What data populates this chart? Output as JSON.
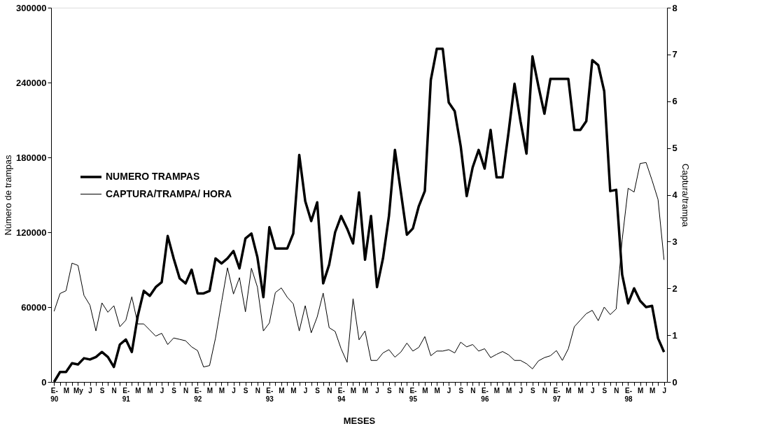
{
  "chart_data": {
    "type": "line",
    "xlabel": "MESES",
    "ylabel": "Número de trampas",
    "y2label": "Captura/trampa",
    "categories": [
      "E-\n90",
      null,
      "M",
      null,
      "My",
      null,
      "J",
      null,
      "S",
      null,
      "N",
      null,
      "E-\n91",
      null,
      "M",
      null,
      "M",
      null,
      "J",
      null,
      "S",
      null,
      "N",
      null,
      "E-\n92",
      null,
      "M",
      null,
      "M",
      null,
      "J",
      null,
      "S",
      null,
      "N",
      null,
      "E-\n93",
      null,
      "M",
      null,
      "M",
      null,
      "J",
      null,
      "S",
      null,
      "N",
      null,
      "E-\n94",
      null,
      "M",
      null,
      "M",
      null,
      "J",
      null,
      "S",
      null,
      "N",
      null,
      "E-\n95",
      null,
      "M",
      null,
      "M",
      null,
      "J",
      null,
      "S",
      null,
      "N",
      null,
      "E-\n96",
      null,
      "M",
      null,
      "M",
      null,
      "J",
      null,
      "S",
      null,
      "N",
      null,
      "E-\n97",
      null,
      "M",
      null,
      "M",
      null,
      "J",
      null,
      "S",
      null,
      "N",
      null,
      "E-\n98",
      null,
      "M",
      null,
      "M",
      null,
      "J"
    ],
    "series": [
      {
        "name": "NUMERO TRAMPAS",
        "color": "#000000",
        "values": [
          0,
          8000,
          8000,
          15000,
          14000,
          19000,
          18000,
          20000,
          24000,
          20000,
          12000,
          30000,
          34000,
          24000,
          53000,
          73000,
          69000,
          76000,
          80000,
          117000,
          99000,
          83000,
          79000,
          90000,
          71000,
          71000,
          73000,
          99000,
          95000,
          99000,
          105000,
          91000,
          115000,
          119000,
          100000,
          68000,
          124000,
          107000,
          107000,
          107000,
          119000,
          182000,
          145000,
          129000,
          144000,
          79000,
          94000,
          120000,
          133000,
          123000,
          111000,
          152000,
          98000,
          133000,
          76000,
          99000,
          133000,
          186000,
          152000,
          118000,
          123000,
          141000,
          153000,
          242000,
          267000,
          267000,
          224000,
          217000,
          189000,
          149000,
          172000,
          186000,
          171000,
          202000,
          164000,
          164000,
          200000,
          239000,
          209000,
          183000,
          261000,
          237000,
          215000,
          243000,
          243000,
          243000,
          243000,
          202000,
          202000,
          209000,
          258000,
          254000,
          233000,
          153000,
          154000,
          86000,
          63000,
          75000,
          65000,
          60000,
          61000,
          35000,
          24000
        ]
      },
      {
        "name": "CAPTURA/TRAMPA/ HORA",
        "color": "#000000",
        "axis": "y2",
        "values": [
          1.51,
          1.89,
          1.95,
          2.54,
          2.49,
          1.85,
          1.64,
          1.09,
          1.69,
          1.49,
          1.63,
          1.18,
          1.32,
          1.82,
          1.24,
          1.24,
          1.11,
          0.98,
          1.04,
          0.8,
          0.94,
          0.91,
          0.88,
          0.75,
          0.67,
          0.32,
          0.35,
          0.94,
          1.7,
          2.44,
          1.88,
          2.23,
          1.5,
          2.43,
          2.03,
          1.09,
          1.26,
          1.91,
          2.01,
          1.81,
          1.67,
          1.09,
          1.63,
          1.05,
          1.39,
          1.9,
          1.16,
          1.08,
          0.71,
          0.42,
          1.78,
          0.9,
          1.09,
          0.46,
          0.46,
          0.62,
          0.69,
          0.53,
          0.64,
          0.83,
          0.66,
          0.74,
          0.97,
          0.56,
          0.66,
          0.66,
          0.69,
          0.62,
          0.85,
          0.75,
          0.8,
          0.66,
          0.71,
          0.52,
          0.59,
          0.65,
          0.58,
          0.46,
          0.46,
          0.39,
          0.28,
          0.45,
          0.52,
          0.56,
          0.67,
          0.46,
          0.71,
          1.18,
          1.32,
          1.46,
          1.53,
          1.31,
          1.6,
          1.44,
          1.56,
          3.04,
          4.14,
          4.06,
          4.67,
          4.69,
          4.31,
          3.9,
          2.61
        ]
      }
    ],
    "ylim": [
      0,
      300000
    ],
    "yticks": [
      0,
      60000,
      120000,
      180000,
      240000,
      300000
    ],
    "y2lim": [
      0,
      8
    ],
    "y2ticks": [
      0,
      1,
      2,
      3,
      4,
      5,
      6,
      7,
      8
    ],
    "grid": false,
    "legend": "left",
    "marker": "none",
    "line_style": "solid"
  }
}
